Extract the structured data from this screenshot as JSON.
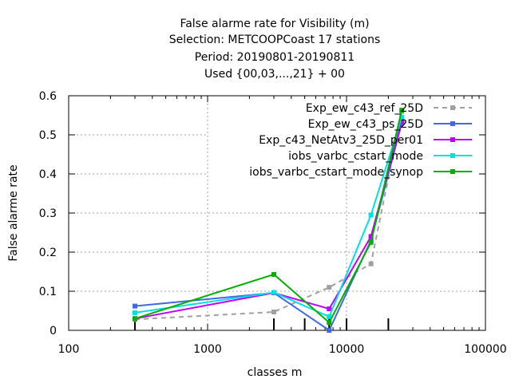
{
  "chart_data": {
    "type": "line",
    "title_lines": [
      "False alarme rate  for Visibility (m)",
      "Selection: METCOOPCoast     17 stations",
      "Period: 20190801-20190811",
      "Used {00,03,...,21} + 00"
    ],
    "xlabel": "classes m",
    "ylabel": "False alarme rate",
    "x_scale": "log",
    "xlim": [
      100,
      100000
    ],
    "ylim": [
      0,
      0.6
    ],
    "x_ticks": [
      100,
      1000,
      10000,
      100000
    ],
    "x_tick_labels": [
      "100",
      "1000",
      "10000",
      "100000"
    ],
    "y_ticks": [
      0,
      0.1,
      0.2,
      0.3,
      0.4,
      0.5,
      0.6
    ],
    "y_tick_labels": [
      "0",
      "0.1",
      "0.2",
      "0.3",
      "0.4",
      "0.5",
      "0.6"
    ],
    "grid": true,
    "legend_position": "top-right",
    "class_markers_x": [
      300,
      3000,
      5000,
      7500,
      10000,
      20000
    ],
    "series": [
      {
        "name": "Exp_ew_c43_ref_25D",
        "color": "#a0a0a0",
        "dashed": true,
        "points": [
          [
            300,
            0.028
          ],
          [
            3000,
            0.047
          ],
          [
            7500,
            0.11
          ],
          [
            15000,
            0.17
          ],
          [
            25000,
            0.56
          ]
        ]
      },
      {
        "name": "Exp_ew_c43_ps_25D",
        "color": "#4169e1",
        "dashed": false,
        "points": [
          [
            300,
            0.062
          ],
          [
            3000,
            0.096
          ],
          [
            7500,
            0.0
          ],
          [
            15000,
            0.23
          ],
          [
            25000,
            0.53
          ]
        ]
      },
      {
        "name": "Exp_c43_NetAtv3_25D_per01",
        "color": "#c000ff",
        "dashed": false,
        "points": [
          [
            300,
            0.03
          ],
          [
            3000,
            0.096
          ],
          [
            7500,
            0.055
          ],
          [
            15000,
            0.24
          ],
          [
            25000,
            0.535
          ]
        ]
      },
      {
        "name": "iobs_varbc_cstart_mode",
        "color": "#00e0e0",
        "dashed": false,
        "points": [
          [
            300,
            0.045
          ],
          [
            3000,
            0.097
          ],
          [
            7500,
            0.035
          ],
          [
            15000,
            0.295
          ],
          [
            25000,
            0.545
          ]
        ]
      },
      {
        "name": "iobs_varbc_cstart_mode_synop",
        "color": "#00b000",
        "dashed": false,
        "points": [
          [
            300,
            0.03
          ],
          [
            3000,
            0.143
          ],
          [
            7500,
            0.02
          ],
          [
            15000,
            0.225
          ],
          [
            25000,
            0.563
          ]
        ]
      }
    ]
  }
}
